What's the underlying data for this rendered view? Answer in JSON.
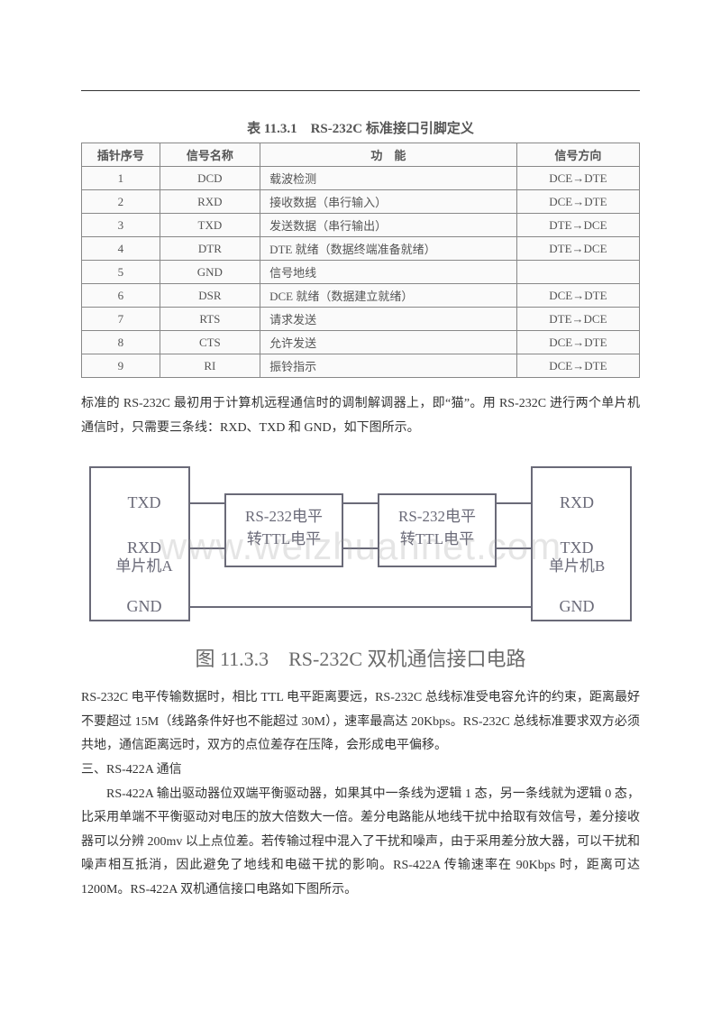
{
  "table": {
    "caption": "表 11.3.1　RS-232C 标准接口引脚定义",
    "headers": [
      "插针序号",
      "信号名称",
      "功　能",
      "信号方向"
    ],
    "rows": [
      [
        "1",
        "DCD",
        "载波检测",
        "DCE→DTE"
      ],
      [
        "2",
        "RXD",
        "接收数据（串行输入）",
        "DCE→DTE"
      ],
      [
        "3",
        "TXD",
        "发送数据（串行输出）",
        "DTE→DCE"
      ],
      [
        "4",
        "DTR",
        "DTE 就绪（数据终端准备就绪）",
        "DTE→DCE"
      ],
      [
        "5",
        "GND",
        "信号地线",
        ""
      ],
      [
        "6",
        "DSR",
        "DCE 就绪（数据建立就绪）",
        "DCE→DTE"
      ],
      [
        "7",
        "RTS",
        "请求发送",
        "DTE→DCE"
      ],
      [
        "8",
        "CTS",
        "允许发送",
        "DCE→DTE"
      ],
      [
        "9",
        "RI",
        "振铃指示",
        "DCE→DTE"
      ]
    ]
  },
  "para1": "标准的 RS-232C 最初用于计算机远程通信时的调制解调器上，即“猫”。用 RS-232C 进行两个单片机通信时，只需要三条线：RXD、TXD 和 GND，如下图所示。",
  "diagram": {
    "left_mcu": "单片机A",
    "right_mcu": "单片机B",
    "left_pins": [
      "TXD",
      "RXD",
      "GND"
    ],
    "right_pins": [
      "RXD",
      "TXD",
      "GND"
    ],
    "converter_line1": "RS-232电平",
    "converter_line2": "转TTL电平",
    "watermark": "www.weizhuannet.com",
    "caption": "图 11.3.3　RS-232C 双机通信接口电路",
    "colors": {
      "line": "#6a6a78",
      "text": "#6a6a78",
      "bg": "#ffffff"
    }
  },
  "para2": "RS-232C 电平传输数据时，相比 TTL 电平距离要远，RS-232C 总线标准受电容允许的约束，距离最好不要超过 15M（线路条件好也不能超过 30M），速率最高达 20Kbps。RS-232C 总线标准要求双方必须共地，通信距离远时，双方的点位差存在压降，会形成电平偏移。",
  "heading3": "三、RS-422A 通信",
  "para3": "RS-422A 输出驱动器位双端平衡驱动器，如果其中一条线为逻辑 1 态，另一条线就为逻辑 0 态，比采用单端不平衡驱动对电压的放大倍数大一倍。差分电路能从地线干扰中拾取有效信号，差分接收器可以分辨 200mv 以上点位差。若传输过程中混入了干扰和噪声，由于采用差分放大器，可以干扰和噪声相互抵消，因此避免了地线和电磁干扰的影响。RS-422A 传输速率在 90Kbps 时，距离可达 1200M。RS-422A 双机通信接口电路如下图所示。"
}
